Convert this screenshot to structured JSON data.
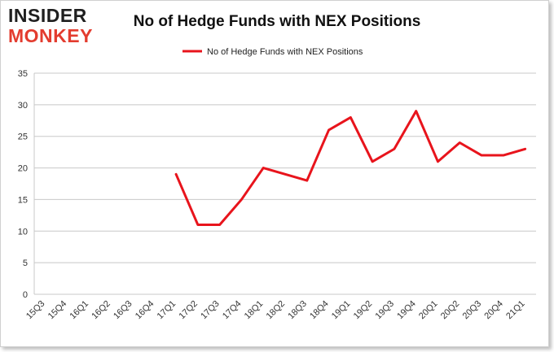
{
  "logo": {
    "line1": "INSIDER",
    "line2": "MONKEY"
  },
  "chart_data": {
    "type": "line",
    "title": "No of Hedge Funds with NEX Positions",
    "xlabel": "",
    "ylabel": "",
    "categories": [
      "15Q3",
      "15Q4",
      "16Q1",
      "16Q2",
      "16Q3",
      "16Q4",
      "17Q1",
      "17Q2",
      "17Q3",
      "17Q4",
      "18Q1",
      "18Q2",
      "18Q3",
      "18Q4",
      "19Q1",
      "19Q2",
      "19Q3",
      "19Q4",
      "20Q1",
      "20Q2",
      "20Q3",
      "20Q4",
      "21Q1"
    ],
    "series": [
      {
        "name": "No of Hedge Funds with NEX Positions",
        "values": [
          null,
          null,
          null,
          null,
          null,
          null,
          19,
          11,
          11,
          15,
          20,
          19,
          18,
          26,
          28,
          21,
          23,
          29,
          21,
          24,
          22,
          22,
          23
        ]
      }
    ],
    "ylim": [
      0,
      35
    ],
    "yticks": [
      0,
      5,
      10,
      15,
      20,
      25,
      30,
      35
    ],
    "grid": true,
    "legend": "top-center",
    "color": "#e8141c"
  }
}
